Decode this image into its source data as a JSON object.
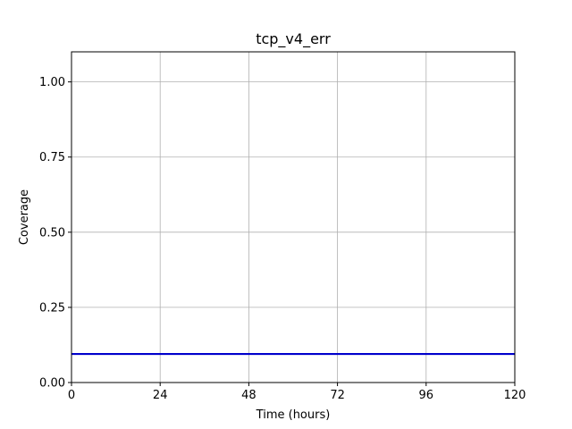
{
  "chart_data": {
    "type": "line",
    "title": "tcp_v4_err",
    "xlabel": "Time (hours)",
    "ylabel": "Coverage",
    "xlim": [
      0,
      120
    ],
    "ylim": [
      0,
      1.1
    ],
    "xticks": [
      0,
      24,
      48,
      72,
      96,
      120
    ],
    "xtick_labels": [
      "0",
      "24",
      "48",
      "72",
      "96",
      "120"
    ],
    "yticks": [
      0,
      0.25,
      0.5,
      0.75,
      1.0
    ],
    "ytick_labels": [
      "0.00",
      "0.25",
      "0.50",
      "0.75",
      "1.00"
    ],
    "grid": true,
    "series": [
      {
        "color": "#0000cc",
        "x": [
          0,
          120
        ],
        "y": [
          0.095,
          0.095
        ]
      }
    ]
  }
}
